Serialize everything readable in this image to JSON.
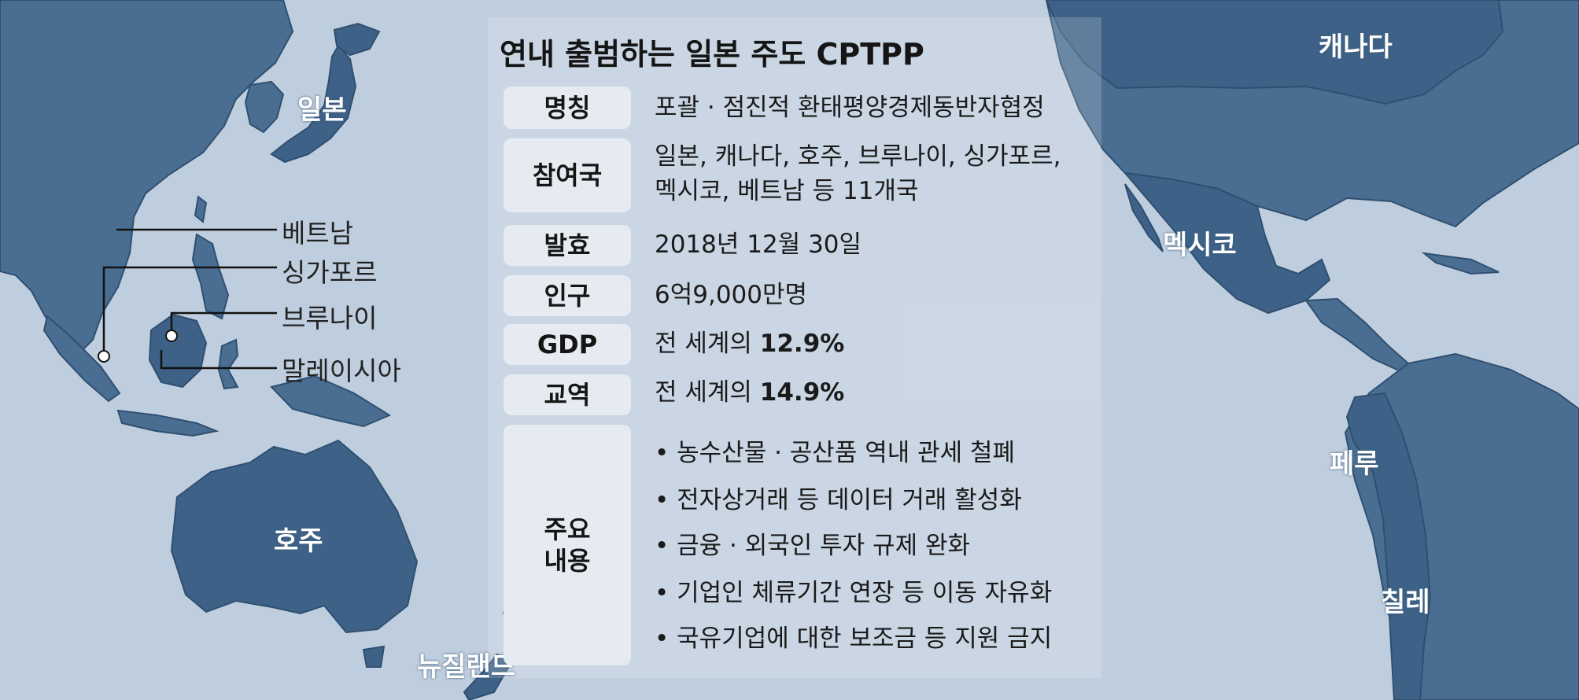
{
  "title": "연내 출범하는 일본 주도 CPTPP",
  "colors": {
    "ocean": "#bfcede",
    "land": "#4a6e92",
    "land_stroke": "#2f4f70",
    "label_bg": "#e6ebf1",
    "text": "#1a1a1a"
  },
  "country_labels": {
    "japan": "일본",
    "canada": "캐나다",
    "mexico": "멕시코",
    "peru": "페루",
    "chile": "칠레",
    "australia": "호주",
    "new_zealand": "뉴질랜드"
  },
  "callout_labels": {
    "vietnam": "베트남",
    "singapore": "싱가포르",
    "brunei": "브루나이",
    "malaysia": "말레이시아"
  },
  "table": {
    "name_label": "명칭",
    "name_value": "포괄 · 점진적 환태평양경제동반자협정",
    "members_label": "참여국",
    "members_line1": "일본, 캐나다, 호주, 브루나이, 싱가포르,",
    "members_line2": "멕시코, 베트남  등 11개국",
    "effective_label": "발효",
    "effective_value": "2018년 12월 30일",
    "population_label": "인구",
    "population_value": "6억9,000만명",
    "gdp_label": "GDP",
    "gdp_prefix": "전 세계의 ",
    "gdp_value": "12.9%",
    "trade_label": "교역",
    "trade_prefix": "전 세계의 ",
    "trade_value": "14.9%",
    "content_label_line1": "주요",
    "content_label_line2": "내용",
    "content_items": [
      "• 농수산물 · 공산품  역내  관세  철폐",
      "• 전자상거래  등  데이터  거래  활성화",
      "• 금융 · 외국인  투자  규제  완화",
      "• 기업인  체류기간  연장  등  이동  자유화",
      "• 국유기업에  대한  보조금  등  지원  금지"
    ]
  }
}
